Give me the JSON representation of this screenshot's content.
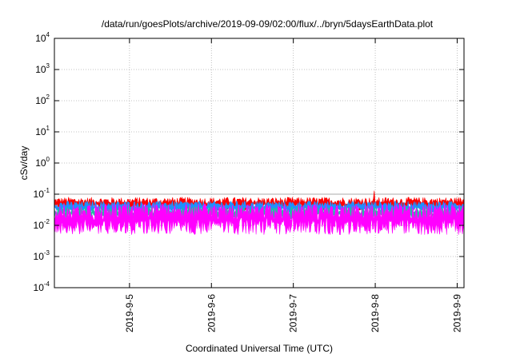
{
  "chart_data": {
    "type": "area",
    "title": "/data/run/goesPlots/archive/2019-09-09/02:00/flux/../bryn/5daysEarthData.plot",
    "xlabel": "Coordinated Universal Time (UTC)",
    "ylabel": "cSv/day",
    "y_scale": "log",
    "ylim": [
      0.0001,
      10000
    ],
    "y_ticks": [
      {
        "base": "10",
        "exp": "-4",
        "value": 0.0001
      },
      {
        "base": "10",
        "exp": "-3",
        "value": 0.001
      },
      {
        "base": "10",
        "exp": "-2",
        "value": 0.01
      },
      {
        "base": "10",
        "exp": "-1",
        "value": 0.1
      },
      {
        "base": "10",
        "exp": "0",
        "value": 1
      },
      {
        "base": "10",
        "exp": "1",
        "value": 10
      },
      {
        "base": "10",
        "exp": "2",
        "value": 100
      },
      {
        "base": "10",
        "exp": "3",
        "value": 1000
      },
      {
        "base": "10",
        "exp": "4",
        "value": 10000
      }
    ],
    "x_range": [
      "2019-09-04 02:00",
      "2019-09-09 02:00"
    ],
    "x_ticks": [
      {
        "label": "2019-9-5",
        "date": "2019-09-05"
      },
      {
        "label": "2019-9-6",
        "date": "2019-09-06"
      },
      {
        "label": "2019-9-7",
        "date": "2019-09-07"
      },
      {
        "label": "2019-9-8",
        "date": "2019-09-08"
      },
      {
        "label": "2019-9-9",
        "date": "2019-09-09"
      }
    ],
    "grid": true,
    "series": [
      {
        "color": "#ff0000",
        "typical_min": 0.03,
        "typical_max": 0.08,
        "peak": 0.13
      },
      {
        "color": "#1e90ff",
        "typical_min": 0.025,
        "typical_max": 0.06
      },
      {
        "color": "#20c0a0",
        "typical_min": 0.015,
        "typical_max": 0.04
      },
      {
        "color": "#ff00ff",
        "typical_min": 0.005,
        "typical_max": 0.05
      }
    ],
    "reference_line": {
      "value": 0.1,
      "color": "#aaaaaa"
    }
  }
}
